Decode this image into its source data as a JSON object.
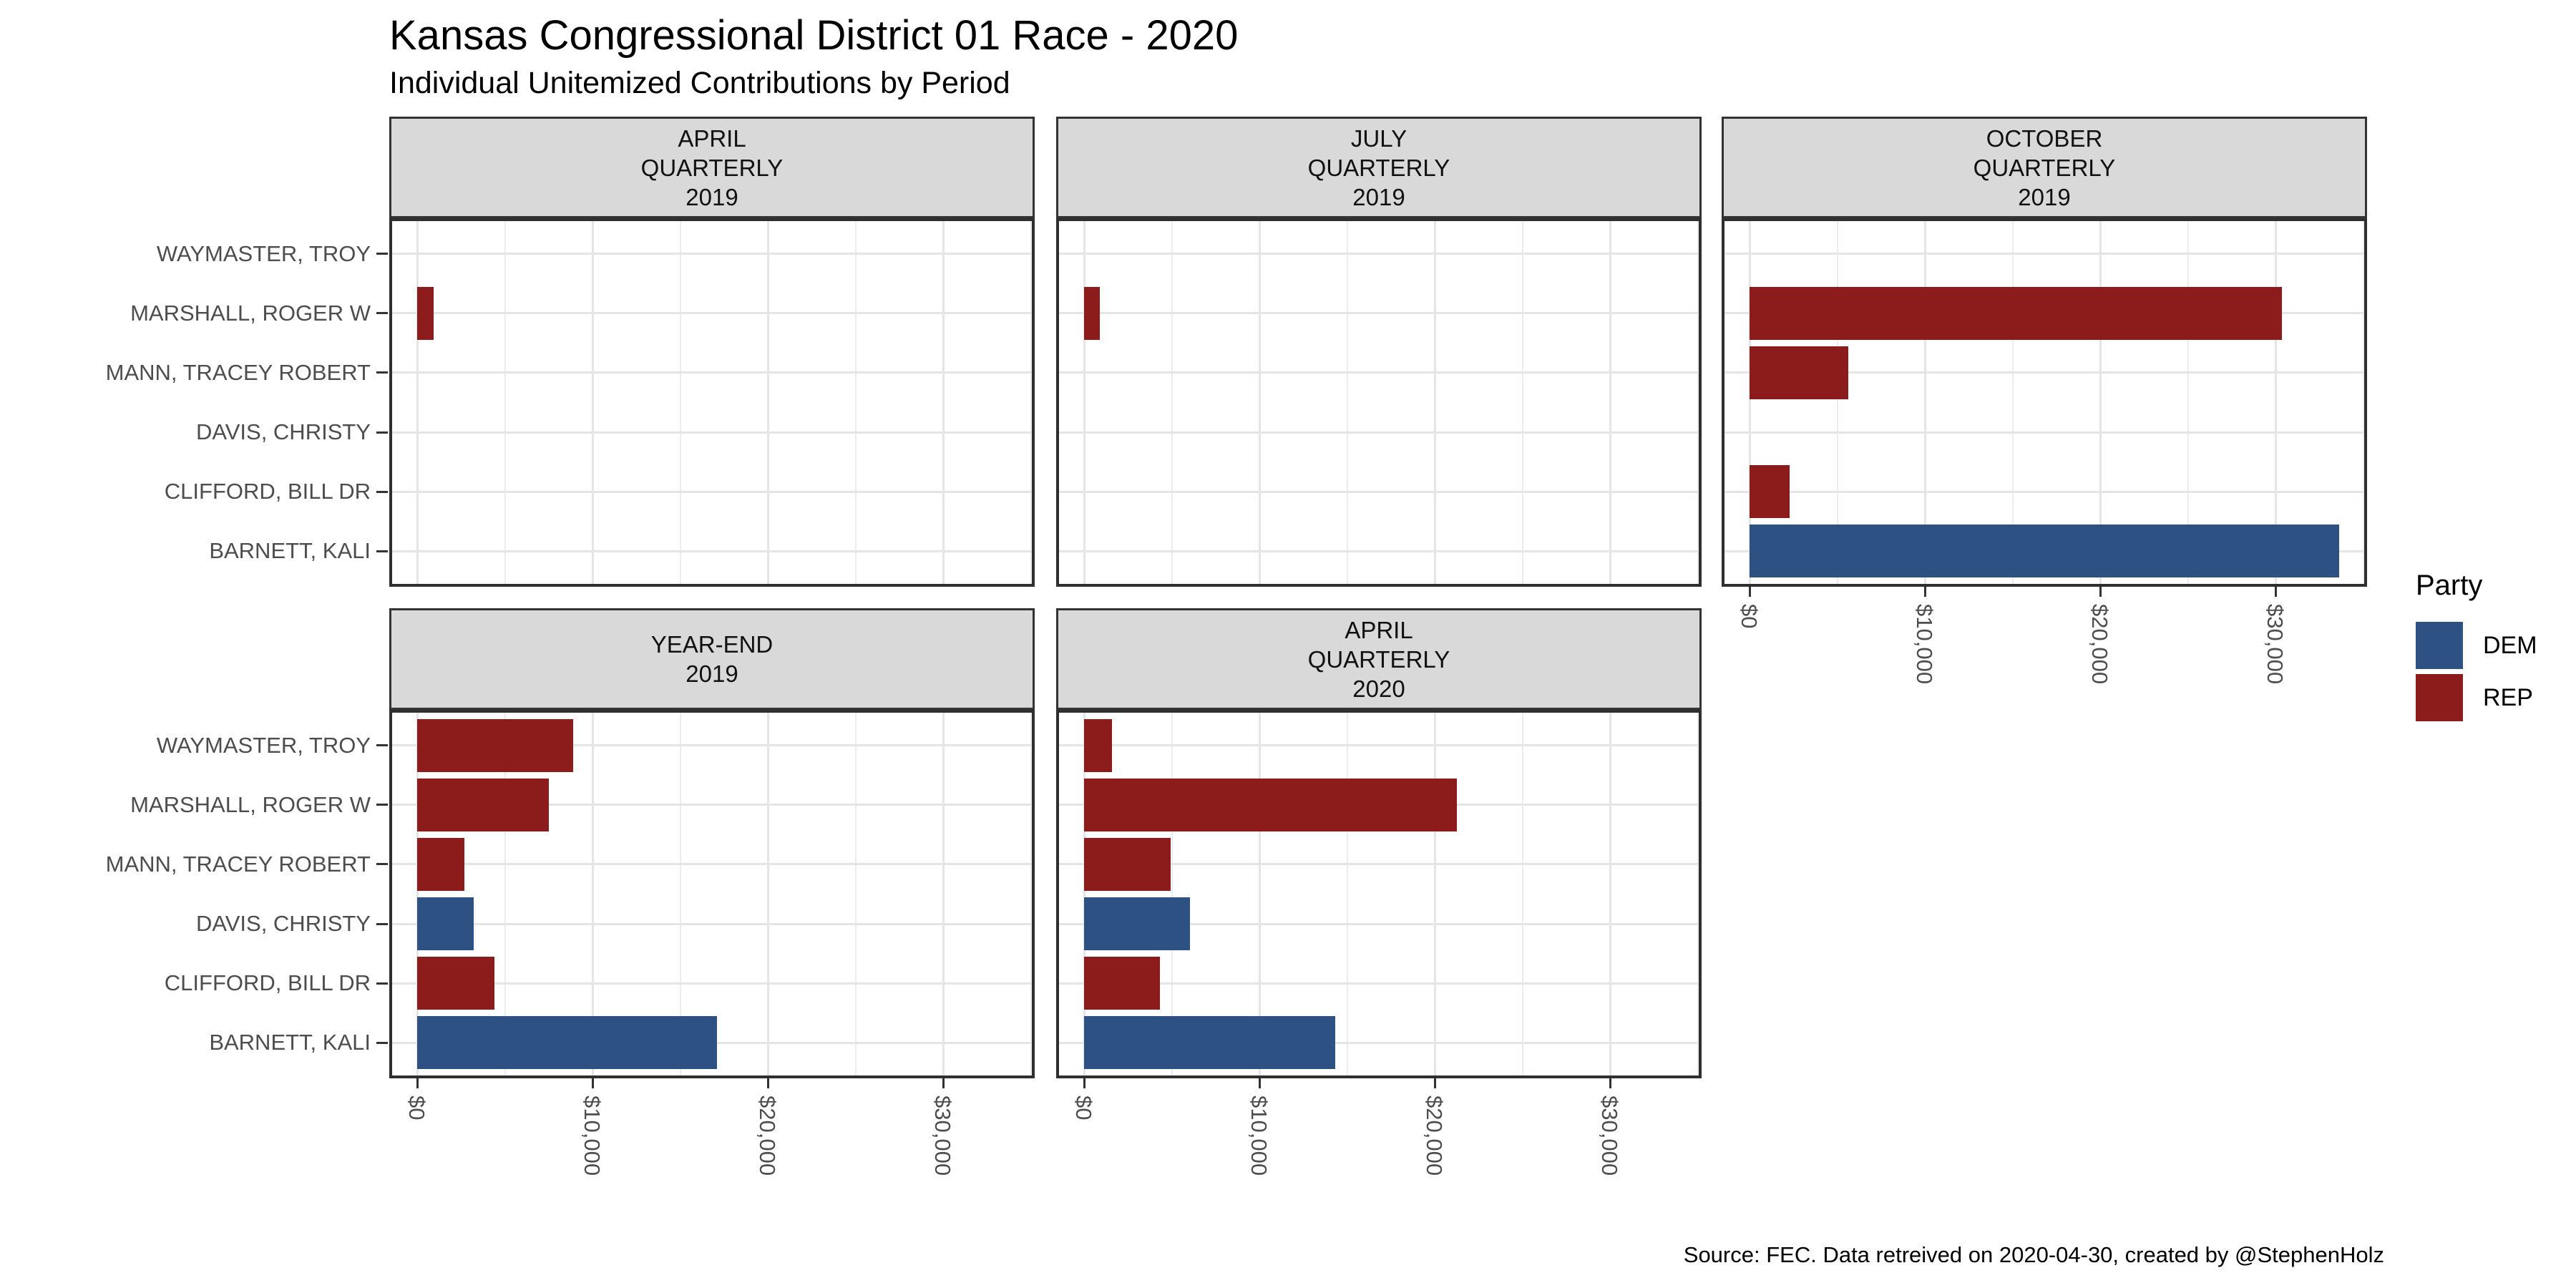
{
  "chart_data": {
    "type": "bar",
    "orientation": "horizontal",
    "title": "Kansas Congressional District 01 Race - 2020",
    "subtitle": "Individual Unitemized Contributions by Period",
    "caption": "Source: FEC. Data retreived on 2020-04-30, created by @StephenHolz",
    "categories": [
      "WAYMASTER, TROY",
      "MARSHALL, ROGER W",
      "MANN, TRACEY ROBERT",
      "DAVIS, CHRISTY",
      "CLIFFORD, BILL DR",
      "BARNETT, KALI"
    ],
    "party_by_category": [
      "REP",
      "REP",
      "REP",
      "DEM",
      "REP",
      "DEM"
    ],
    "x_axis": {
      "tick_labels": [
        "$0",
        "$10,000",
        "$20,000",
        "$30,000"
      ],
      "tick_values": [
        0,
        10000,
        20000,
        30000
      ],
      "minor_tick_values": [
        5000,
        15000,
        25000,
        35000
      ],
      "range": [
        0,
        35000
      ],
      "format": "USD"
    },
    "facets": [
      {
        "title_lines": [
          "APRIL",
          "QUARTERLY",
          "2019"
        ],
        "grid": {
          "row": 0,
          "col": 0
        },
        "values": [
          0,
          950,
          0,
          0,
          0,
          0
        ],
        "show_x_axis": false
      },
      {
        "title_lines": [
          "JULY",
          "QUARTERLY",
          "2019"
        ],
        "grid": {
          "row": 0,
          "col": 1
        },
        "values": [
          0,
          880,
          0,
          0,
          0,
          0
        ],
        "show_x_axis": false
      },
      {
        "title_lines": [
          "OCTOBER",
          "QUARTERLY",
          "2019"
        ],
        "grid": {
          "row": 0,
          "col": 2
        },
        "values": [
          0,
          30350,
          5650,
          0,
          2300,
          33650
        ],
        "show_x_axis": true
      },
      {
        "title_lines": [
          "YEAR-END",
          "2019"
        ],
        "grid": {
          "row": 1,
          "col": 0
        },
        "values": [
          8900,
          7520,
          2700,
          3230,
          4400,
          17100
        ],
        "show_x_axis": true
      },
      {
        "title_lines": [
          "APRIL",
          "QUARTERLY",
          "2020"
        ],
        "grid": {
          "row": 1,
          "col": 1
        },
        "values": [
          1590,
          21250,
          4940,
          6030,
          4340,
          14320
        ],
        "show_x_axis": true
      }
    ],
    "legend": {
      "title": "Party",
      "position": "right",
      "entries": [
        {
          "label": "DEM",
          "color": "#2E5183"
        },
        {
          "label": "REP",
          "color": "#8C1B1B"
        }
      ]
    },
    "colors": {
      "dem": "#2E5183",
      "rep": "#8C1B1B",
      "strip_fill": "#D9D9D9",
      "panel_border": "#2F2F2F",
      "grid_major": "#E5E5E5",
      "grid_minor": "#ECECEC",
      "axis_text": "#4D4D4D",
      "tick": "#333333"
    },
    "grid": {
      "vertical_major": true,
      "vertical_minor": true,
      "horizontal_major": "category centers",
      "legend_position": "right"
    }
  }
}
